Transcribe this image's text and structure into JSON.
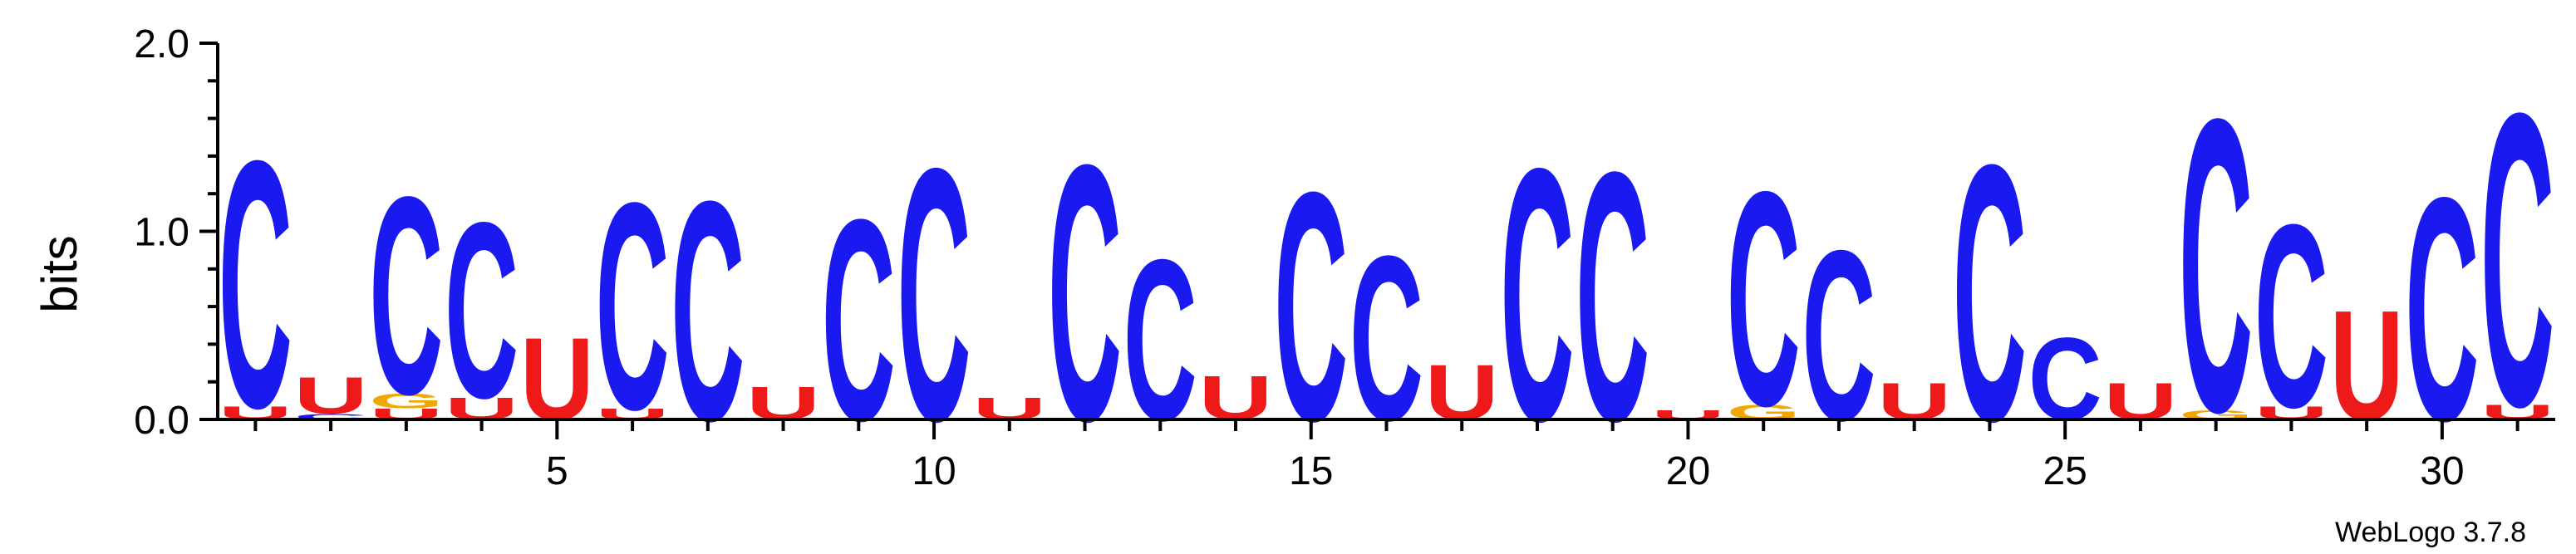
{
  "chart_data": {
    "type": "sequence-logo",
    "ylabel": "bits",
    "ylim": [
      0,
      2.0
    ],
    "yticks": [
      "0.0",
      "1.0",
      "2.0"
    ],
    "xticks": [
      5,
      10,
      15,
      20,
      25,
      30
    ],
    "colors": {
      "A": "#0c9a1a",
      "C": "#1a1af0",
      "G": "#f0a800",
      "U": "#ee1a1a"
    },
    "positions": [
      [
        [
          "U",
          0.07
        ],
        [
          "C",
          1.35
        ]
      ],
      [
        [
          "C",
          0.03
        ],
        [
          "U",
          0.2
        ]
      ],
      [
        [
          "U",
          0.06
        ],
        [
          "G",
          0.08
        ],
        [
          "C",
          1.08
        ]
      ],
      [
        [
          "U",
          0.12
        ],
        [
          "C",
          0.96
        ]
      ],
      [
        [
          "U",
          0.45
        ]
      ],
      [
        [
          "U",
          0.06
        ],
        [
          "C",
          1.13
        ]
      ],
      [
        [
          "C",
          1.2
        ]
      ],
      [
        [
          "U",
          0.18
        ]
      ],
      [
        [
          "C",
          1.1
        ]
      ],
      [
        [
          "C",
          1.38
        ]
      ],
      [
        [
          "U",
          0.12
        ]
      ],
      [
        [
          "C",
          1.4
        ]
      ],
      [
        [
          "C",
          0.88
        ]
      ],
      [
        [
          "U",
          0.24
        ]
      ],
      [
        [
          "C",
          1.25
        ]
      ],
      [
        [
          "C",
          0.9
        ]
      ],
      [
        [
          "U",
          0.3
        ]
      ],
      [
        [
          "C",
          1.38
        ]
      ],
      [
        [
          "C",
          1.36
        ]
      ],
      [
        [
          "U",
          0.05
        ]
      ],
      [
        [
          "G",
          0.08
        ],
        [
          "C",
          1.17
        ]
      ],
      [
        [
          "C",
          0.93
        ]
      ],
      [
        [
          "U",
          0.2
        ]
      ],
      [
        [
          "C",
          1.4
        ]
      ],
      [
        [
          "C",
          0.45
        ]
      ],
      [
        [
          "U",
          0.2
        ]
      ],
      [
        [
          "G",
          0.05
        ],
        [
          "C",
          1.6
        ]
      ],
      [
        [
          "U",
          0.07
        ],
        [
          "C",
          1.0
        ]
      ],
      [
        [
          "U",
          0.6
        ]
      ],
      [
        [
          "C",
          1.22
        ]
      ],
      [
        [
          "U",
          0.08
        ],
        [
          "C",
          1.6
        ]
      ]
    ]
  },
  "footer": "WebLogo 3.7.8"
}
